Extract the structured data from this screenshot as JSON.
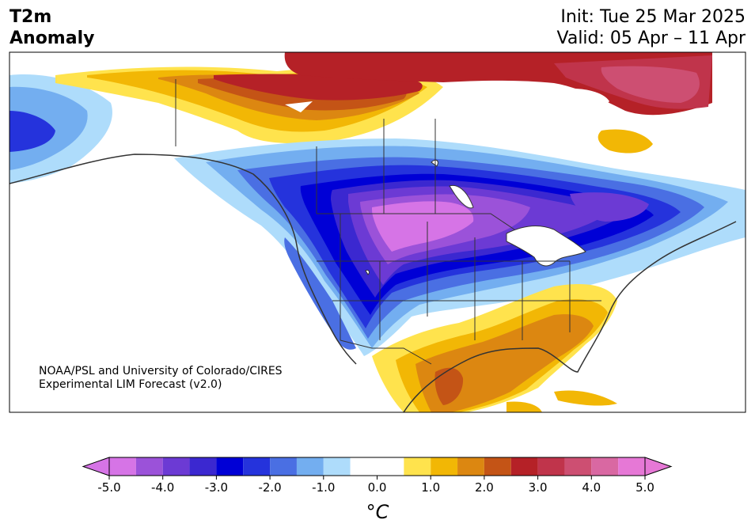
{
  "header": {
    "variable": "T2m",
    "subtitle": "Anomaly",
    "init": "Init: Tue 25 Mar 2025",
    "valid": "Valid: 05 Apr – 11 Apr"
  },
  "credit": {
    "line1": "NOAA/PSL and University of Colorado/CIRES",
    "line2": "Experimental LIM Forecast (v2.0)"
  },
  "colorbar": {
    "unit": "°C",
    "tick_labels": [
      "-5.0",
      "-4.0",
      "-3.0",
      "-2.0",
      "-1.0",
      "0.0",
      "1.0",
      "2.0",
      "3.0",
      "4.0",
      "5.0"
    ],
    "levels": [
      -5,
      -4.5,
      -4,
      -3.5,
      -3,
      -2.5,
      -2,
      -1.5,
      -1,
      -0.5,
      0.5,
      1,
      1.5,
      2,
      2.5,
      3,
      3.5,
      4,
      4.5,
      5
    ],
    "colors": [
      "#d674e6",
      "#9b52d9",
      "#6c3ad4",
      "#3b28d0",
      "#0000d6",
      "#2533dc",
      "#4a6fe3",
      "#73aef0",
      "#aedcfb",
      "#ffffff",
      "#ffe34d",
      "#f2b705",
      "#dc8711",
      "#c45416",
      "#b52127",
      "#c0344b",
      "#cd4f72",
      "#d968a2",
      "#e678d6"
    ],
    "under_color": "#d674e6",
    "over_color": "#e678d6"
  },
  "map": {
    "region": "North America",
    "land_color_neutral": "#ffffff",
    "border_color": "#333333"
  }
}
